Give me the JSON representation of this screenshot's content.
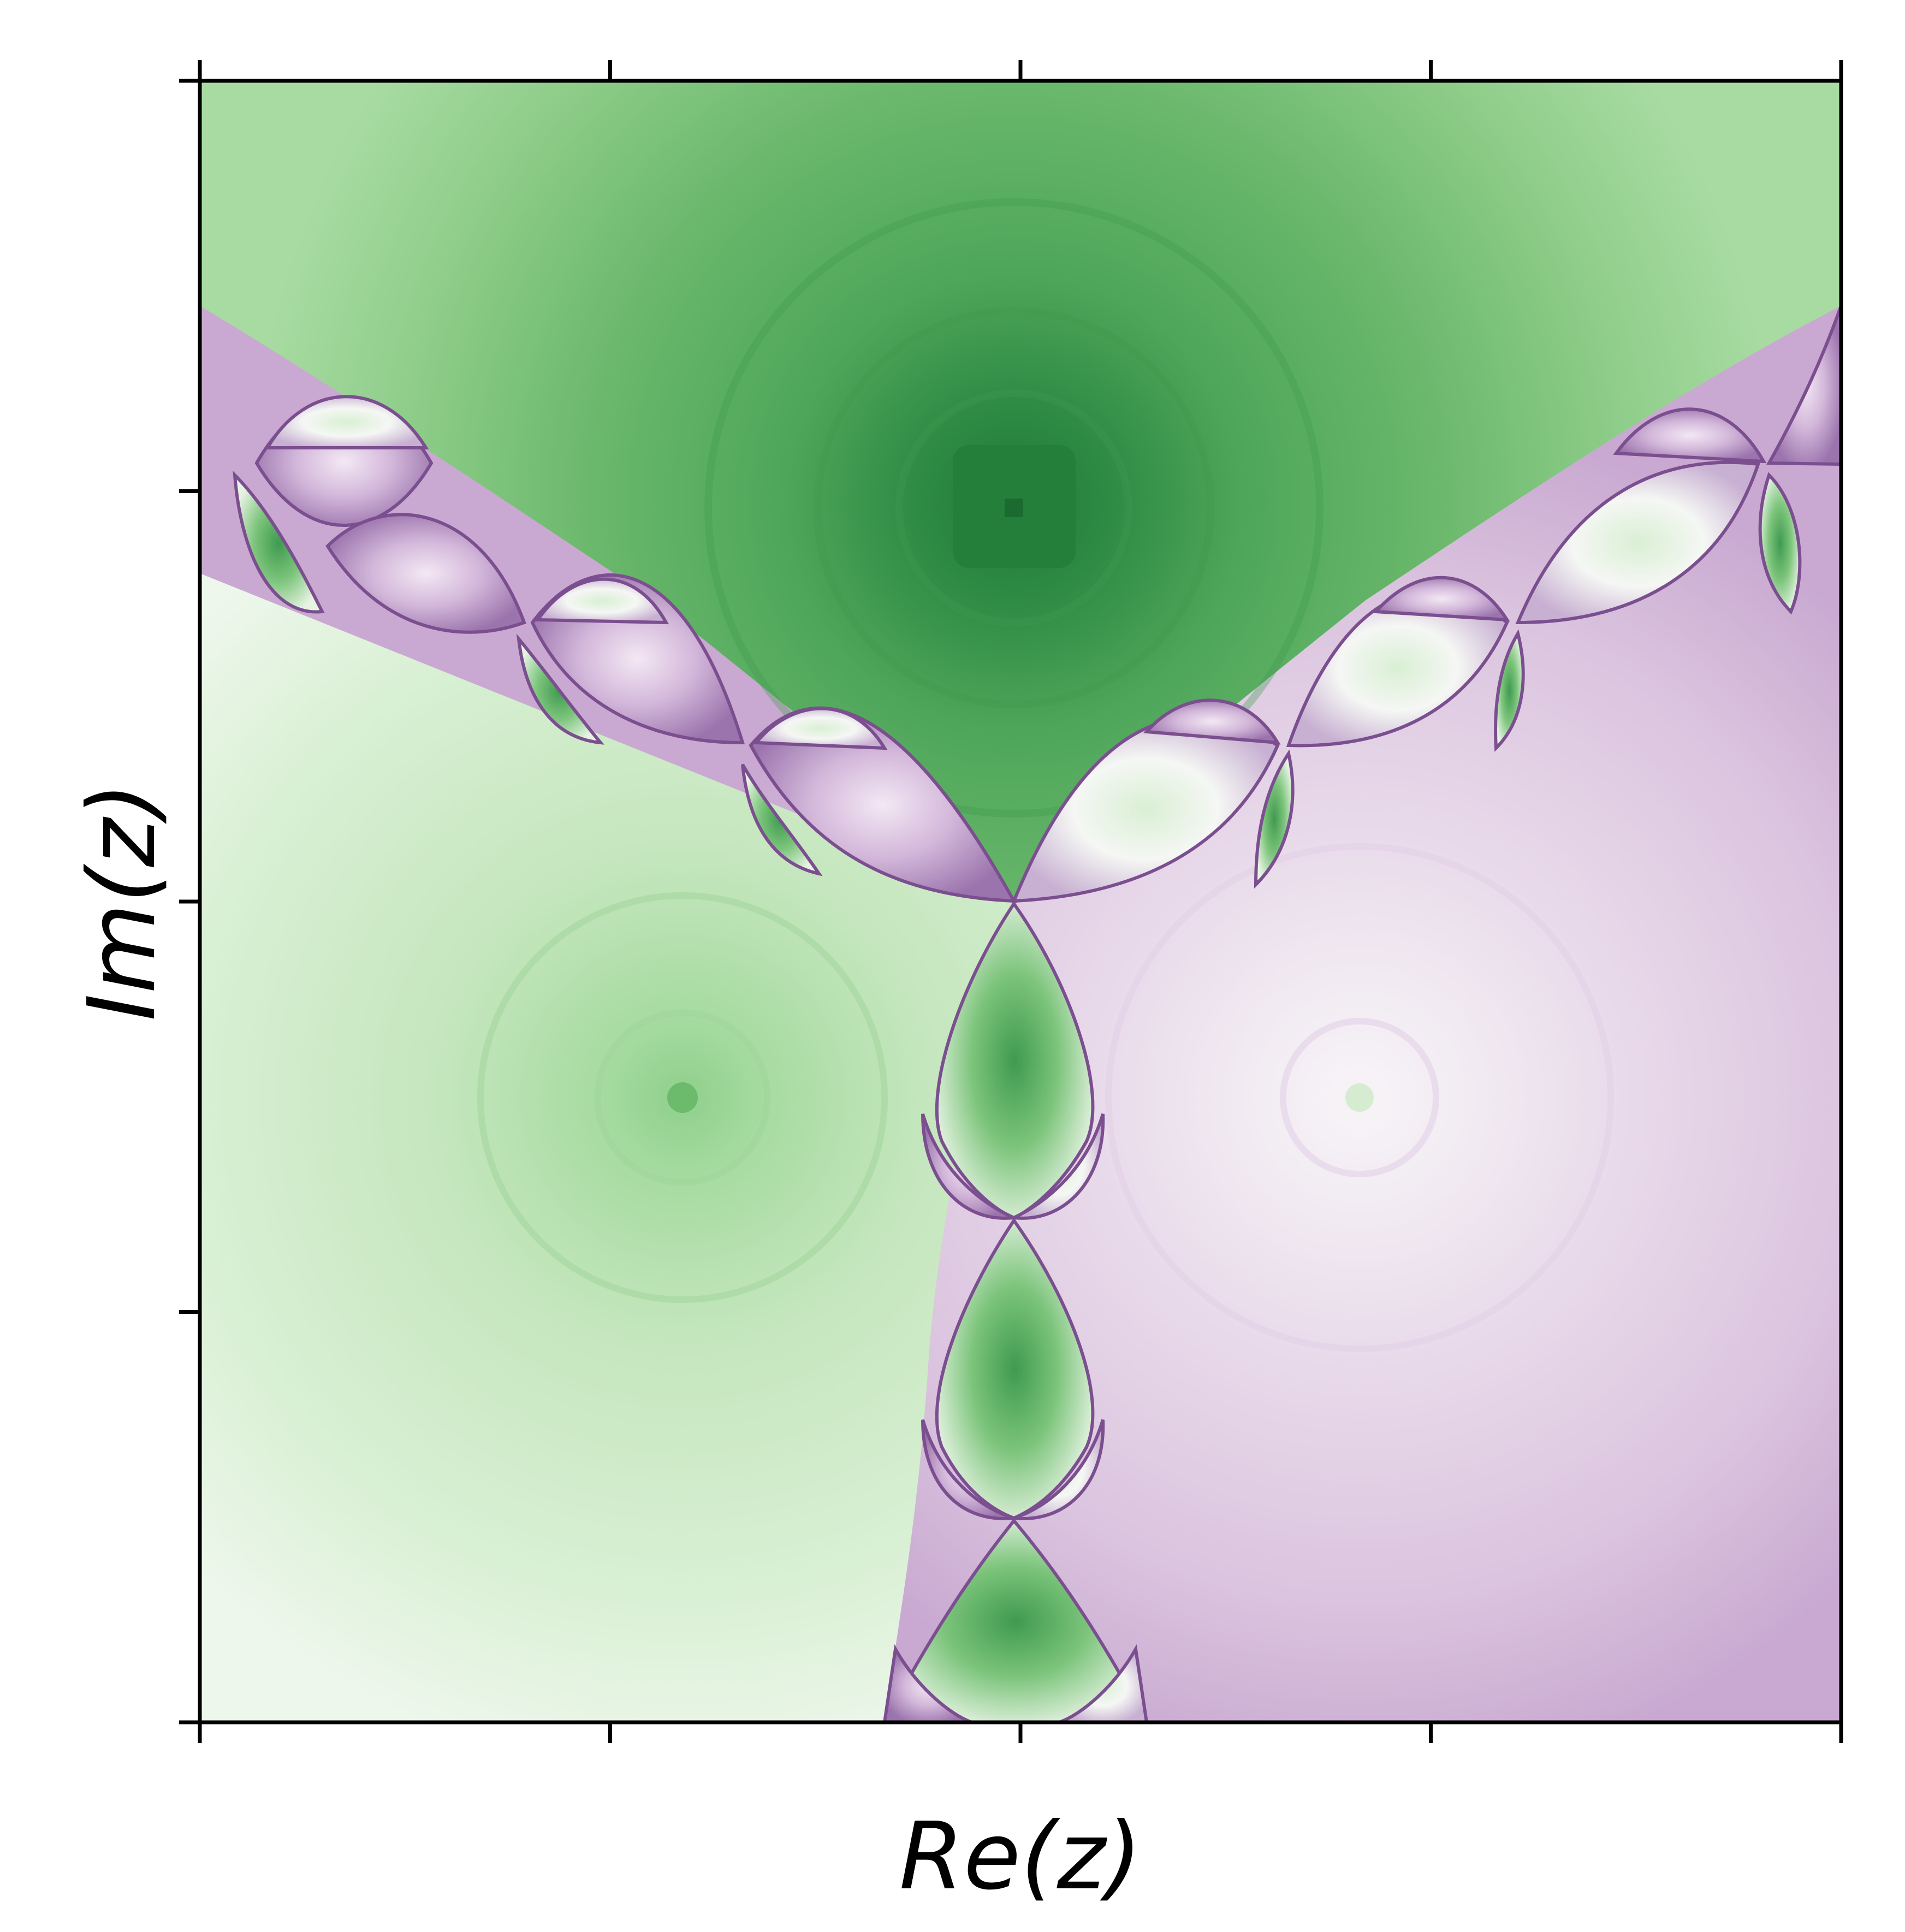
{
  "chart_data": {
    "type": "heatmap",
    "description_hint": "",
    "title": "",
    "xlabel": "Re(z)",
    "ylabel": "Im(z)",
    "x_tick_count": 5,
    "y_tick_count": 5,
    "tick_labels_visible": false,
    "grid": false,
    "legend": "none",
    "colormap": [
      "#1b7837",
      "#5aae61",
      "#a6dba0",
      "#d9f0d3",
      "#f7f7f7",
      "#e7d4e8",
      "#c2a5cf",
      "#9970ab",
      "#762a83"
    ]
  }
}
